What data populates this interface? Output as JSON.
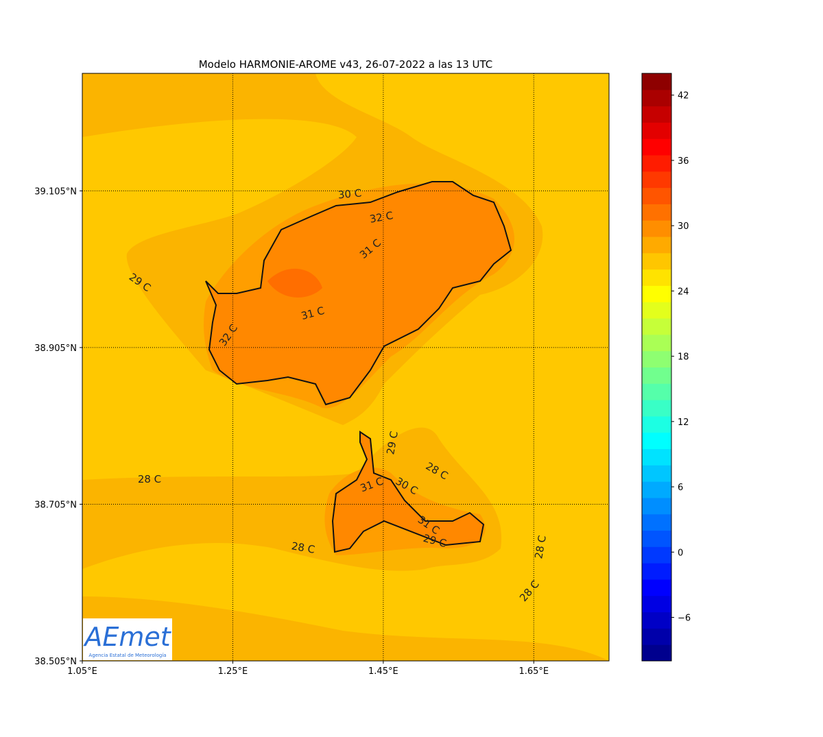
{
  "map": {
    "title": "Modelo HARMONIE-AROME v43, 26-07-2022 a las 13 UTC",
    "xlim": [
      1.05,
      1.75
    ],
    "ylim": [
      38.505,
      39.255
    ],
    "xticks": [
      {
        "value": 1.05,
        "label": "1.05°E"
      },
      {
        "value": 1.25,
        "label": "1.25°E"
      },
      {
        "value": 1.45,
        "label": "1.45°E"
      },
      {
        "value": 1.65,
        "label": "1.65°E"
      }
    ],
    "yticks": [
      {
        "value": 38.505,
        "label": "38.505°N"
      },
      {
        "value": 38.705,
        "label": "38.705°N"
      },
      {
        "value": 38.905,
        "label": "38.905°N"
      },
      {
        "value": 39.105,
        "label": "39.105°N"
      }
    ],
    "contour_labels": [
      "30 C",
      "32 C",
      "31 C",
      "29 C",
      "31 C",
      "32 C",
      "29 C",
      "28 C",
      "28 C",
      "30 C",
      "31 C",
      "31 C",
      "28 C",
      "29 C",
      "28 C",
      "28 C"
    ],
    "colorbar": {
      "lim": [
        -10,
        44
      ],
      "ticks": [
        {
          "value": -6,
          "label": "−6"
        },
        0,
        6,
        12,
        18,
        24,
        30,
        36,
        42
      ]
    },
    "logo": {
      "name": "AEmet",
      "subtitle": "Agencia Estatal de Meteorología"
    }
  }
}
